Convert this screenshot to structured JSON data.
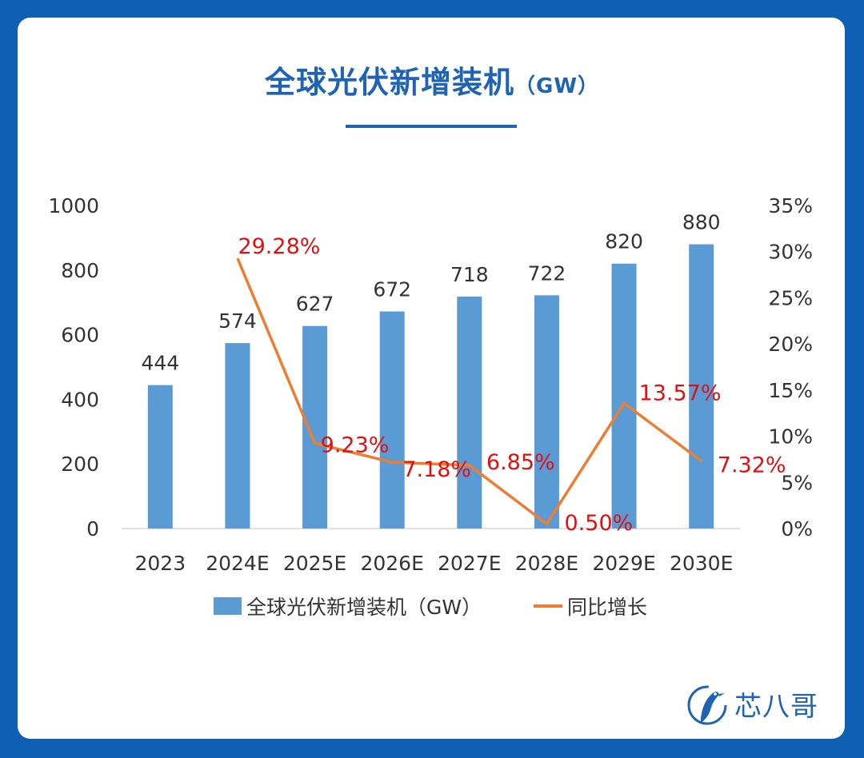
{
  "title": {
    "main": "全球光伏新增装机",
    "unit": "（GW）"
  },
  "chart_data": {
    "type": "bar",
    "categories": [
      "2023",
      "2024E",
      "2025E",
      "2026E",
      "2027E",
      "2028E",
      "2029E",
      "2030E"
    ],
    "series": [
      {
        "name": "全球光伏新增装机（GW）",
        "type": "bar",
        "axis": "left",
        "values": [
          444,
          574,
          627,
          672,
          718,
          722,
          820,
          880
        ],
        "color": "#5b9bd5"
      },
      {
        "name": "同比增长",
        "type": "line",
        "axis": "right",
        "values": [
          null,
          29.28,
          9.23,
          7.18,
          6.85,
          0.5,
          13.57,
          7.32
        ],
        "labels": [
          null,
          "29.28%",
          "9.23%",
          "7.18%",
          "6.85%",
          "0.50%",
          "13.57%",
          "7.32%"
        ],
        "color": "#ed7d31",
        "label_color": "#e01010"
      }
    ],
    "y_left": {
      "ylim": [
        0,
        1000
      ],
      "ticks": [
        "0",
        "200",
        "400",
        "600",
        "800",
        "1000"
      ]
    },
    "y_right": {
      "ylim": [
        0,
        35
      ],
      "ticks": [
        "0%",
        "5%",
        "10%",
        "15%",
        "20%",
        "25%",
        "30%",
        "35%"
      ]
    },
    "grid": false,
    "legend_position": "bottom"
  },
  "brand": {
    "name": "芯八哥",
    "icon": "bird-logo-icon",
    "color": "#1e63b4"
  }
}
